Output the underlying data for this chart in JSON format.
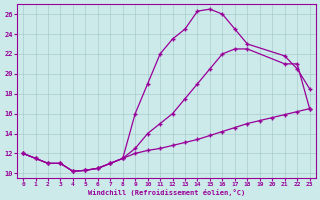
{
  "background_color": "#cceaea",
  "line_color": "#990099",
  "grid_color": "#aacccc",
  "xlabel": "Windchill (Refroidissement éolien,°C)",
  "xlim": [
    -0.5,
    23.5
  ],
  "ylim": [
    9.5,
    27
  ],
  "yticks": [
    10,
    12,
    14,
    16,
    18,
    20,
    22,
    24,
    26
  ],
  "xticks": [
    0,
    1,
    2,
    3,
    4,
    5,
    6,
    7,
    8,
    9,
    10,
    11,
    12,
    13,
    14,
    15,
    16,
    17,
    18,
    19,
    20,
    21,
    22,
    23
  ],
  "line1_x": [
    0,
    1,
    2,
    3,
    4,
    5,
    6,
    7,
    8,
    9,
    10,
    11,
    12,
    13,
    14,
    15,
    16,
    17,
    18,
    21,
    22,
    23
  ],
  "line1_y": [
    12.0,
    11.5,
    11.0,
    11.0,
    10.2,
    10.3,
    10.5,
    11.0,
    11.5,
    16.0,
    19.0,
    22.0,
    23.5,
    24.5,
    26.3,
    26.5,
    26.0,
    24.5,
    23.0,
    21.8,
    20.5,
    18.5
  ],
  "line2_x": [
    0,
    1,
    2,
    3,
    4,
    5,
    6,
    7,
    8,
    9,
    10,
    11,
    12,
    13,
    14,
    15,
    16,
    17,
    18,
    21,
    22,
    23
  ],
  "line2_y": [
    12.0,
    11.5,
    11.0,
    11.0,
    10.2,
    10.3,
    10.5,
    11.0,
    11.5,
    12.5,
    14.0,
    15.0,
    16.0,
    17.5,
    19.0,
    20.5,
    22.0,
    22.5,
    22.5,
    21.0,
    21.0,
    16.5
  ],
  "line3_x": [
    0,
    1,
    2,
    3,
    4,
    5,
    6,
    7,
    8,
    9,
    10,
    11,
    12,
    13,
    14,
    15,
    16,
    17,
    18,
    19,
    20,
    21,
    22,
    23
  ],
  "line3_y": [
    12.0,
    11.5,
    11.0,
    11.0,
    10.2,
    10.3,
    10.5,
    11.0,
    11.5,
    12.0,
    12.3,
    12.5,
    12.8,
    13.1,
    13.4,
    13.8,
    14.2,
    14.6,
    15.0,
    15.3,
    15.6,
    15.9,
    16.2,
    16.5
  ]
}
